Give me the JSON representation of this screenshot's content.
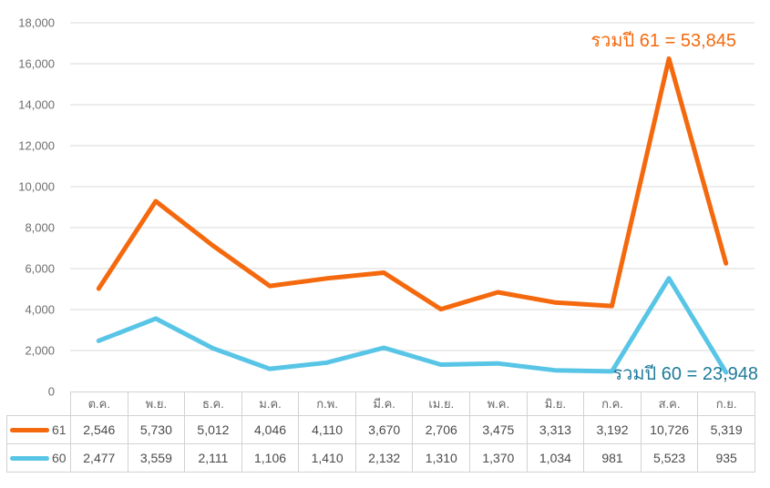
{
  "chart_data": {
    "type": "line",
    "stacked": true,
    "title": "",
    "xlabel": "",
    "ylabel": "",
    "categories": [
      "ต.ค.",
      "พ.ย.",
      "ธ.ค.",
      "ม.ค.",
      "ก.พ.",
      "มี.ค.",
      "เม.ย.",
      "พ.ค.",
      "มิ.ย.",
      "ก.ค.",
      "ส.ค.",
      "ก.ย."
    ],
    "series": [
      {
        "name": "61",
        "color": "#F4690E",
        "values": [
          2546,
          5730,
          5012,
          4046,
          4110,
          3670,
          2706,
          3475,
          3313,
          3192,
          10726,
          5319
        ],
        "total": 53845
      },
      {
        "name": "60",
        "color": "#58C5E6",
        "values": [
          2477,
          3559,
          2111,
          1106,
          1410,
          2132,
          1310,
          1370,
          1034,
          981,
          5523,
          935
        ],
        "total": 23948
      }
    ],
    "ylim": [
      0,
      18000
    ],
    "ytick_step": 2000,
    "grid": true,
    "legend_position": "table-left",
    "annotations": [
      {
        "text": "รวมปี 61 = 53,845",
        "color": "#F4690E"
      },
      {
        "text": "รวมปี 60 = 23,948",
        "color": "#1F7A9B"
      }
    ]
  },
  "colors": {
    "background": "#FFFFFF",
    "gridline": "#D9D9D9",
    "axis_label": "#6E6E6E",
    "table_border": "#D2D2D2",
    "header_text": "#666666",
    "cell_text": "#4A4A4A",
    "legend_text": "#555555"
  }
}
